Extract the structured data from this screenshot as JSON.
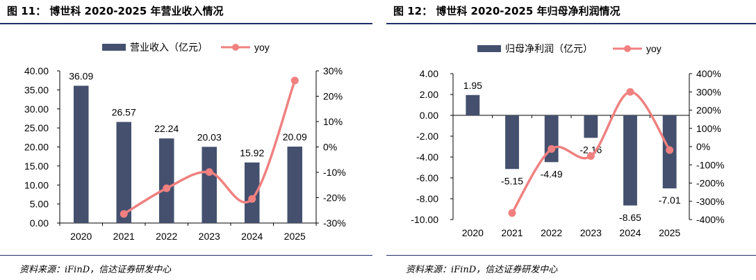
{
  "colors": {
    "bar": "#44506e",
    "line": "#f08080",
    "rule": "#1f2d6b"
  },
  "source_note": "资料来源：iFinD，信达证券研发中心",
  "chart_data": [
    {
      "type": "bar",
      "figure_title": "图 11：  博世科 2020-2025 年营业收入情况",
      "categories": [
        "2020",
        "2021",
        "2022",
        "2023",
        "2024",
        "2025"
      ],
      "series": [
        {
          "name": "营业收入（亿元）",
          "type": "bar",
          "axis": "left",
          "values": [
            36.09,
            26.57,
            22.24,
            20.03,
            15.92,
            20.09
          ],
          "labels": [
            "36.09",
            "26.57",
            "22.24",
            "20.03",
            "15.92",
            "20.09"
          ]
        },
        {
          "name": "yoy",
          "type": "line",
          "axis": "right",
          "smooth": true,
          "values": [
            null,
            -26.4,
            -16.3,
            -9.9,
            -20.5,
            26.2
          ]
        }
      ],
      "y_left": {
        "ylim": [
          0,
          40
        ],
        "ticks": [
          "0.00",
          "5.00",
          "10.00",
          "15.00",
          "20.00",
          "25.00",
          "30.00",
          "35.00",
          "40.00"
        ]
      },
      "y_right": {
        "ylim": [
          -30,
          30
        ],
        "ticks": [
          "-30%",
          "-20%",
          "-10%",
          "0%",
          "10%",
          "20%",
          "30%"
        ]
      },
      "legend": {
        "placement": "top"
      },
      "grid": false
    },
    {
      "type": "bar",
      "figure_title": "图 12：  博世科 2020-2025 年归母净利润情况",
      "categories": [
        "2020",
        "2021",
        "2022",
        "2023",
        "2024",
        "2025"
      ],
      "series": [
        {
          "name": "归母净利润（亿元）",
          "type": "bar",
          "axis": "left",
          "values": [
            1.95,
            -5.15,
            -4.49,
            -2.16,
            -8.65,
            -7.01
          ],
          "labels": [
            "1.95",
            "-5.15",
            "-4.49",
            "-2.16",
            "-8.65",
            "-7.01"
          ]
        },
        {
          "name": "yoy",
          "type": "line",
          "axis": "right",
          "smooth": true,
          "values": [
            null,
            -364,
            -13,
            -52,
            300,
            -19
          ]
        }
      ],
      "y_left": {
        "ylim": [
          -10,
          4
        ],
        "ticks": [
          "-10.00",
          "-8.00",
          "-6.00",
          "-4.00",
          "-2.00",
          "0.00",
          "2.00",
          "4.00"
        ]
      },
      "y_right": {
        "ylim": [
          -400,
          400
        ],
        "ticks": [
          "-400%",
          "-300%",
          "-200%",
          "-100%",
          "0%",
          "100%",
          "200%",
          "300%",
          "400%"
        ]
      },
      "legend": {
        "placement": "top"
      },
      "grid": false
    }
  ]
}
